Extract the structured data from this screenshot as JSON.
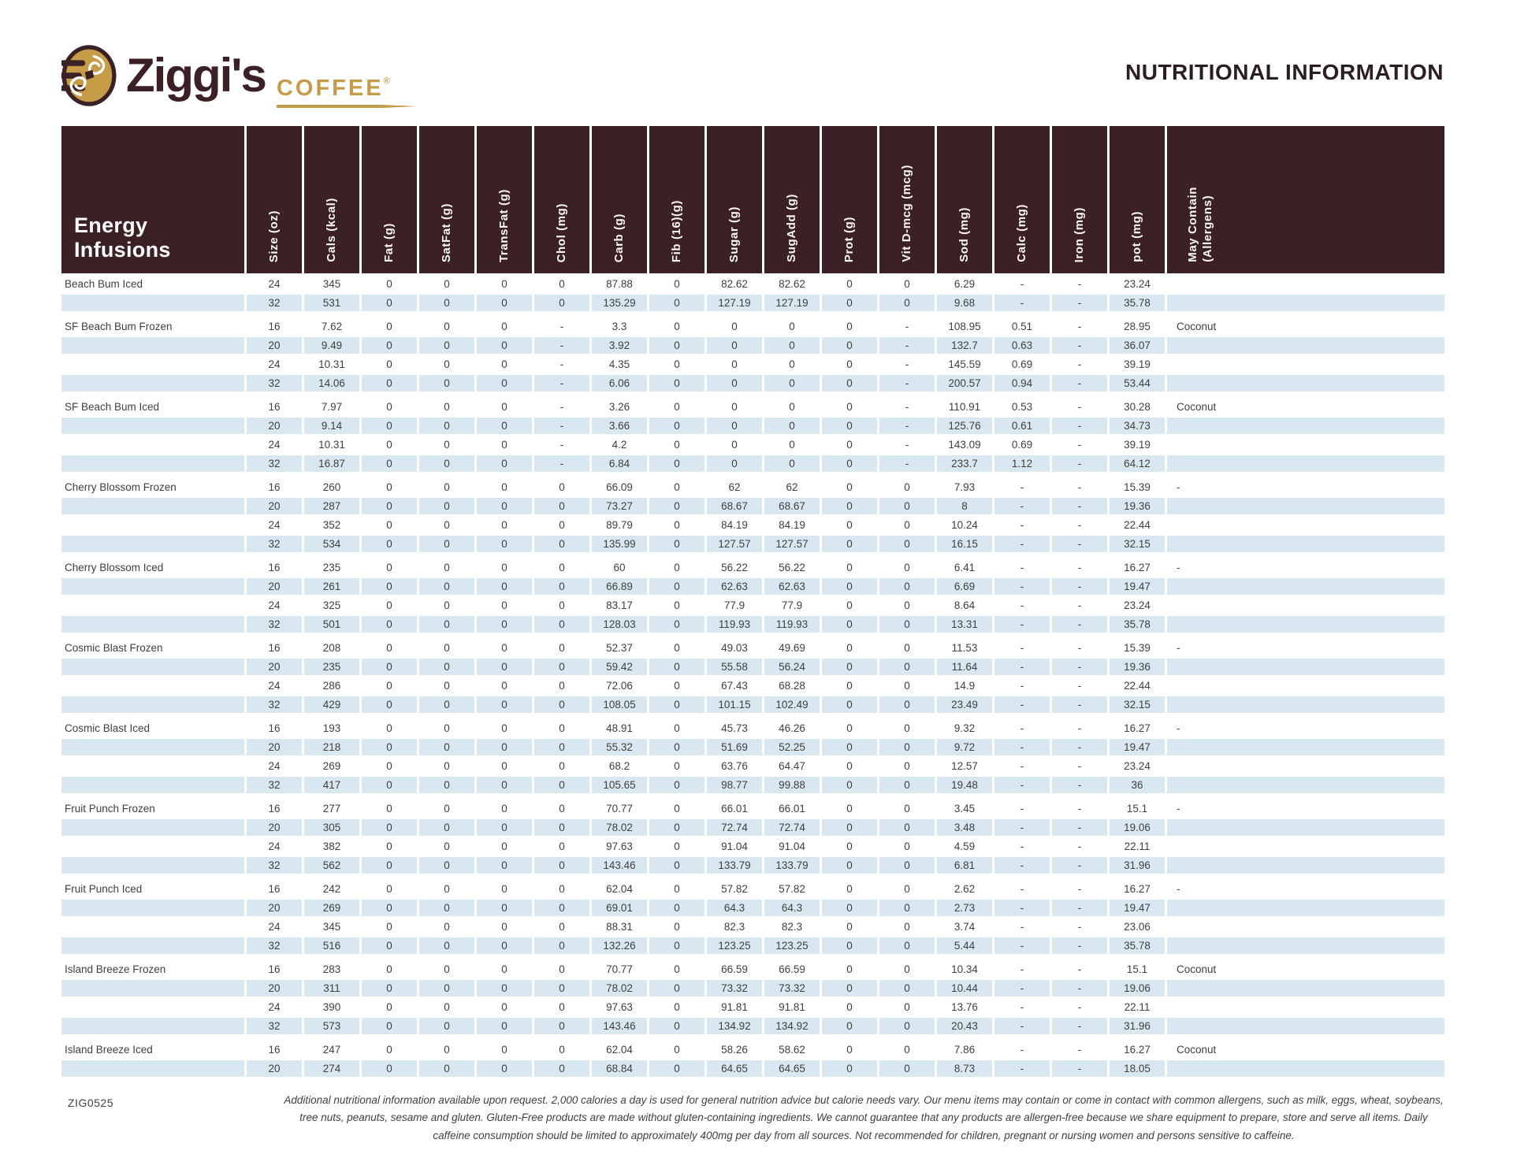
{
  "brand": {
    "name": "Ziggi's",
    "word": "COFFEE",
    "registered": "®"
  },
  "title": "NUTRITIONAL INFORMATION",
  "colors": {
    "brand_brown": "#3b2125",
    "brand_gold": "#c69c49",
    "stripe_blue": "#d9e8f0"
  },
  "table": {
    "category_label": "Energy Infusions",
    "columns": [
      "Size (oz)",
      "Cals (kcal)",
      "Fat (g)",
      "SatFat (g)",
      "TransFat (g)",
      "Chol (mg)",
      "Carb (g)",
      "Fib (16)(g)",
      "Sugar (g)",
      "SugAdd (g)",
      "Prot (g)",
      "Vit D-mcg (mcg)",
      "Sod (mg)",
      "Calc (mg)",
      "Iron (mg)",
      "pot (mg)",
      "May Contain\n(Allergens)"
    ],
    "rows": [
      {
        "product": "Beach Bum Iced",
        "values": [
          "24",
          "345",
          "0",
          "0",
          "0",
          "0",
          "87.88",
          "0",
          "82.62",
          "82.62",
          "0",
          "0",
          "6.29",
          "-",
          "-",
          "23.24"
        ],
        "allergen": ""
      },
      {
        "product": "",
        "values": [
          "32",
          "531",
          "0",
          "0",
          "0",
          "0",
          "135.29",
          "0",
          "127.19",
          "127.19",
          "0",
          "0",
          "9.68",
          "-",
          "-",
          "35.78"
        ],
        "allergen": ""
      },
      {
        "product": "SF Beach Bum Frozen",
        "values": [
          "16",
          "7.62",
          "0",
          "0",
          "0",
          "-",
          "3.3",
          "0",
          "0",
          "0",
          "0",
          "-",
          "108.95",
          "0.51",
          "-",
          "28.95"
        ],
        "allergen": "Coconut"
      },
      {
        "product": "",
        "values": [
          "20",
          "9.49",
          "0",
          "0",
          "0",
          "-",
          "3.92",
          "0",
          "0",
          "0",
          "0",
          "-",
          "132.7",
          "0.63",
          "-",
          "36.07"
        ],
        "allergen": ""
      },
      {
        "product": "",
        "values": [
          "24",
          "10.31",
          "0",
          "0",
          "0",
          "-",
          "4.35",
          "0",
          "0",
          "0",
          "0",
          "-",
          "145.59",
          "0.69",
          "-",
          "39.19"
        ],
        "allergen": ""
      },
      {
        "product": "",
        "values": [
          "32",
          "14.06",
          "0",
          "0",
          "0",
          "-",
          "6.06",
          "0",
          "0",
          "0",
          "0",
          "-",
          "200.57",
          "0.94",
          "-",
          "53.44"
        ],
        "allergen": ""
      },
      {
        "product": "SF Beach Bum Iced",
        "values": [
          "16",
          "7.97",
          "0",
          "0",
          "0",
          "-",
          "3.26",
          "0",
          "0",
          "0",
          "0",
          "-",
          "110.91",
          "0.53",
          "-",
          "30.28"
        ],
        "allergen": "Coconut"
      },
      {
        "product": "",
        "values": [
          "20",
          "9.14",
          "0",
          "0",
          "0",
          "-",
          "3.66",
          "0",
          "0",
          "0",
          "0",
          "-",
          "125.76",
          "0.61",
          "-",
          "34.73"
        ],
        "allergen": ""
      },
      {
        "product": "",
        "values": [
          "24",
          "10.31",
          "0",
          "0",
          "0",
          "-",
          "4.2",
          "0",
          "0",
          "0",
          "0",
          "-",
          "143.09",
          "0.69",
          "-",
          "39.19"
        ],
        "allergen": ""
      },
      {
        "product": "",
        "values": [
          "32",
          "16.87",
          "0",
          "0",
          "0",
          "-",
          "6.84",
          "0",
          "0",
          "0",
          "0",
          "-",
          "233.7",
          "1.12",
          "-",
          "64.12"
        ],
        "allergen": ""
      },
      {
        "product": "Cherry Blossom Frozen",
        "values": [
          "16",
          "260",
          "0",
          "0",
          "0",
          "0",
          "66.09",
          "0",
          "62",
          "62",
          "0",
          "0",
          "7.93",
          "-",
          "-",
          "15.39"
        ],
        "allergen": "-"
      },
      {
        "product": "",
        "values": [
          "20",
          "287",
          "0",
          "0",
          "0",
          "0",
          "73.27",
          "0",
          "68.67",
          "68.67",
          "0",
          "0",
          "8",
          "-",
          "-",
          "19.36"
        ],
        "allergen": ""
      },
      {
        "product": "",
        "values": [
          "24",
          "352",
          "0",
          "0",
          "0",
          "0",
          "89.79",
          "0",
          "84.19",
          "84.19",
          "0",
          "0",
          "10.24",
          "-",
          "-",
          "22.44"
        ],
        "allergen": ""
      },
      {
        "product": "",
        "values": [
          "32",
          "534",
          "0",
          "0",
          "0",
          "0",
          "135.99",
          "0",
          "127.57",
          "127.57",
          "0",
          "0",
          "16.15",
          "-",
          "-",
          "32.15"
        ],
        "allergen": ""
      },
      {
        "product": "Cherry Blossom Iced",
        "values": [
          "16",
          "235",
          "0",
          "0",
          "0",
          "0",
          "60",
          "0",
          "56.22",
          "56.22",
          "0",
          "0",
          "6.41",
          "-",
          "-",
          "16.27"
        ],
        "allergen": "-"
      },
      {
        "product": "",
        "values": [
          "20",
          "261",
          "0",
          "0",
          "0",
          "0",
          "66.89",
          "0",
          "62.63",
          "62.63",
          "0",
          "0",
          "6.69",
          "-",
          "-",
          "19.47"
        ],
        "allergen": ""
      },
      {
        "product": "",
        "values": [
          "24",
          "325",
          "0",
          "0",
          "0",
          "0",
          "83.17",
          "0",
          "77.9",
          "77.9",
          "0",
          "0",
          "8.64",
          "-",
          "-",
          "23.24"
        ],
        "allergen": ""
      },
      {
        "product": "",
        "values": [
          "32",
          "501",
          "0",
          "0",
          "0",
          "0",
          "128.03",
          "0",
          "119.93",
          "119.93",
          "0",
          "0",
          "13.31",
          "-",
          "-",
          "35.78"
        ],
        "allergen": ""
      },
      {
        "product": "Cosmic Blast Frozen",
        "values": [
          "16",
          "208",
          "0",
          "0",
          "0",
          "0",
          "52.37",
          "0",
          "49.03",
          "49.69",
          "0",
          "0",
          "11.53",
          "-",
          "-",
          "15.39"
        ],
        "allergen": "-"
      },
      {
        "product": "",
        "values": [
          "20",
          "235",
          "0",
          "0",
          "0",
          "0",
          "59.42",
          "0",
          "55.58",
          "56.24",
          "0",
          "0",
          "11.64",
          "-",
          "-",
          "19.36"
        ],
        "allergen": ""
      },
      {
        "product": "",
        "values": [
          "24",
          "286",
          "0",
          "0",
          "0",
          "0",
          "72.06",
          "0",
          "67.43",
          "68.28",
          "0",
          "0",
          "14.9",
          "-",
          "-",
          "22.44"
        ],
        "allergen": ""
      },
      {
        "product": "",
        "values": [
          "32",
          "429",
          "0",
          "0",
          "0",
          "0",
          "108.05",
          "0",
          "101.15",
          "102.49",
          "0",
          "0",
          "23.49",
          "-",
          "-",
          "32.15"
        ],
        "allergen": ""
      },
      {
        "product": "Cosmic Blast Iced",
        "values": [
          "16",
          "193",
          "0",
          "0",
          "0",
          "0",
          "48.91",
          "0",
          "45.73",
          "46.26",
          "0",
          "0",
          "9.32",
          "-",
          "-",
          "16.27"
        ],
        "allergen": "-"
      },
      {
        "product": "",
        "values": [
          "20",
          "218",
          "0",
          "0",
          "0",
          "0",
          "55.32",
          "0",
          "51.69",
          "52.25",
          "0",
          "0",
          "9.72",
          "-",
          "-",
          "19.47"
        ],
        "allergen": ""
      },
      {
        "product": "",
        "values": [
          "24",
          "269",
          "0",
          "0",
          "0",
          "0",
          "68.2",
          "0",
          "63.76",
          "64.47",
          "0",
          "0",
          "12.57",
          "-",
          "-",
          "23.24"
        ],
        "allergen": ""
      },
      {
        "product": "",
        "values": [
          "32",
          "417",
          "0",
          "0",
          "0",
          "0",
          "105.65",
          "0",
          "98.77",
          "99.88",
          "0",
          "0",
          "19.48",
          "-",
          "-",
          "36"
        ],
        "allergen": ""
      },
      {
        "product": "Fruit Punch Frozen",
        "values": [
          "16",
          "277",
          "0",
          "0",
          "0",
          "0",
          "70.77",
          "0",
          "66.01",
          "66.01",
          "0",
          "0",
          "3.45",
          "-",
          "-",
          "15.1"
        ],
        "allergen": "-"
      },
      {
        "product": "",
        "values": [
          "20",
          "305",
          "0",
          "0",
          "0",
          "0",
          "78.02",
          "0",
          "72.74",
          "72.74",
          "0",
          "0",
          "3.48",
          "-",
          "-",
          "19.06"
        ],
        "allergen": ""
      },
      {
        "product": "",
        "values": [
          "24",
          "382",
          "0",
          "0",
          "0",
          "0",
          "97.63",
          "0",
          "91.04",
          "91.04",
          "0",
          "0",
          "4.59",
          "-",
          "-",
          "22.11"
        ],
        "allergen": ""
      },
      {
        "product": "",
        "values": [
          "32",
          "562",
          "0",
          "0",
          "0",
          "0",
          "143.46",
          "0",
          "133.79",
          "133.79",
          "0",
          "0",
          "6.81",
          "-",
          "-",
          "31.96"
        ],
        "allergen": ""
      },
      {
        "product": "Fruit Punch Iced",
        "values": [
          "16",
          "242",
          "0",
          "0",
          "0",
          "0",
          "62.04",
          "0",
          "57.82",
          "57.82",
          "0",
          "0",
          "2.62",
          "-",
          "-",
          "16.27"
        ],
        "allergen": "-"
      },
      {
        "product": "",
        "values": [
          "20",
          "269",
          "0",
          "0",
          "0",
          "0",
          "69.01",
          "0",
          "64.3",
          "64.3",
          "0",
          "0",
          "2.73",
          "-",
          "-",
          "19.47"
        ],
        "allergen": ""
      },
      {
        "product": "",
        "values": [
          "24",
          "345",
          "0",
          "0",
          "0",
          "0",
          "88.31",
          "0",
          "82.3",
          "82.3",
          "0",
          "0",
          "3.74",
          "-",
          "-",
          "23.06"
        ],
        "allergen": ""
      },
      {
        "product": "",
        "values": [
          "32",
          "516",
          "0",
          "0",
          "0",
          "0",
          "132.26",
          "0",
          "123.25",
          "123.25",
          "0",
          "0",
          "5.44",
          "-",
          "-",
          "35.78"
        ],
        "allergen": ""
      },
      {
        "product": "Island Breeze Frozen",
        "values": [
          "16",
          "283",
          "0",
          "0",
          "0",
          "0",
          "70.77",
          "0",
          "66.59",
          "66.59",
          "0",
          "0",
          "10.34",
          "-",
          "-",
          "15.1"
        ],
        "allergen": "Coconut"
      },
      {
        "product": "",
        "values": [
          "20",
          "311",
          "0",
          "0",
          "0",
          "0",
          "78.02",
          "0",
          "73.32",
          "73.32",
          "0",
          "0",
          "10.44",
          "-",
          "-",
          "19.06"
        ],
        "allergen": ""
      },
      {
        "product": "",
        "values": [
          "24",
          "390",
          "0",
          "0",
          "0",
          "0",
          "97.63",
          "0",
          "91.81",
          "91.81",
          "0",
          "0",
          "13.76",
          "-",
          "-",
          "22.11"
        ],
        "allergen": ""
      },
      {
        "product": "",
        "values": [
          "32",
          "573",
          "0",
          "0",
          "0",
          "0",
          "143.46",
          "0",
          "134.92",
          "134.92",
          "0",
          "0",
          "20.43",
          "-",
          "-",
          "31.96"
        ],
        "allergen": ""
      },
      {
        "product": "Island Breeze Iced",
        "values": [
          "16",
          "247",
          "0",
          "0",
          "0",
          "0",
          "62.04",
          "0",
          "58.26",
          "58.62",
          "0",
          "0",
          "7.86",
          "-",
          "-",
          "16.27"
        ],
        "allergen": "Coconut"
      },
      {
        "product": "",
        "values": [
          "20",
          "274",
          "0",
          "0",
          "0",
          "0",
          "68.84",
          "0",
          "64.65",
          "64.65",
          "0",
          "0",
          "8.73",
          "-",
          "-",
          "18.05"
        ],
        "allergen": ""
      }
    ]
  },
  "footer": {
    "code": "ZIG0525",
    "disclaimer": "Additional nutritional information available upon request. 2,000 calories a day is used for general nutrition advice but calorie needs vary. Our menu items may contain or come in contact with common allergens, such as milk, eggs, wheat, soybeans, tree nuts, peanuts, sesame and gluten. Gluten-Free products are made without gluten-containing ingredients. We cannot guarantee that any products are allergen-free because we share equipment to prepare, store and serve all items. Daily caffeine consumption should be limited to approximately 400mg per day from all sources. Not recommended for children, pregnant or nursing women and persons sensitive to caffeine."
  }
}
